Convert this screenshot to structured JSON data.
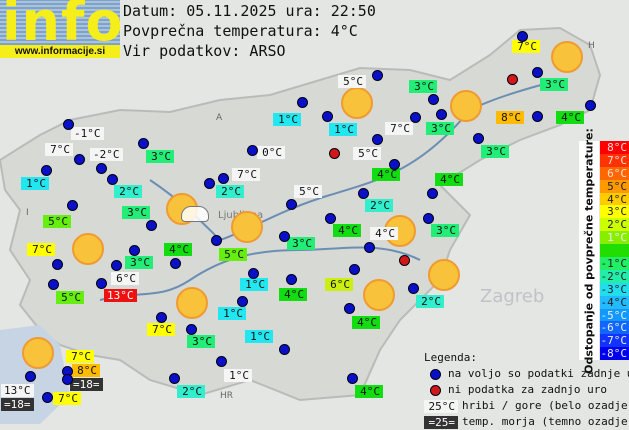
{
  "header": {
    "logo_text": "info",
    "site": "www.informacije.si",
    "date_line": "Datum: 05.11.2025 ura: 22:50",
    "avg_line": "Povprečna temperatura: 4°C",
    "source_line": "Vir podatkov: ARSO"
  },
  "map_markers": [
    "A",
    "I",
    "H",
    "HR",
    "Ljubljana",
    "Zagreb"
  ],
  "stations": [
    {
      "t": "7°C",
      "bg": "#ffff00"
    },
    {
      "t": "5°C",
      "bg": "#f5f5f5"
    },
    {
      "t": "3°C",
      "bg": "#22ee77"
    },
    {
      "t": "3°C",
      "bg": "#22ee77"
    },
    {
      "t": "1°C",
      "bg": "#22e6f0"
    },
    {
      "t": "1°C",
      "bg": "#22e6f0"
    },
    {
      "t": "7°C",
      "bg": "#f5f5f5"
    },
    {
      "t": "3°C",
      "bg": "#22ee77"
    },
    {
      "t": "8°C",
      "bg": "#ffbb00"
    },
    {
      "t": "4°C",
      "bg": "#11dd11"
    },
    {
      "t": "-1°C",
      "bg": "#f5f5f5"
    },
    {
      "t": "7°C",
      "bg": "#f5f5f5"
    },
    {
      "t": "-2°C",
      "bg": "#f5f5f5"
    },
    {
      "t": "3°C",
      "bg": "#22ee77"
    },
    {
      "t": "0°C",
      "bg": "#f5f5f5"
    },
    {
      "t": "5°C",
      "bg": "#f5f5f5"
    },
    {
      "t": "3°C",
      "bg": "#22ee77"
    },
    {
      "t": "1°C",
      "bg": "#22e6f0"
    },
    {
      "t": "2°C",
      "bg": "#33eecc"
    },
    {
      "t": "2°C",
      "bg": "#33eecc"
    },
    {
      "t": "7°C",
      "bg": "#f5f5f5"
    },
    {
      "t": "4°C",
      "bg": "#11dd11"
    },
    {
      "t": "4°C",
      "bg": "#11dd11"
    },
    {
      "t": "5°C",
      "bg": "#f5f5f5"
    },
    {
      "t": "2°C",
      "bg": "#33eecc"
    },
    {
      "t": "3°C",
      "bg": "#22ee77"
    },
    {
      "t": "5°C",
      "bg": "#66ee11"
    },
    {
      "t": "3°C",
      "bg": "#22ee77"
    },
    {
      "t": "4°C",
      "bg": "#11dd11"
    },
    {
      "t": "4°C",
      "bg": "#f5f5f5"
    },
    {
      "t": "3°C",
      "bg": "#22ee77"
    },
    {
      "t": "7°C",
      "bg": "#ffff00"
    },
    {
      "t": "4°C",
      "bg": "#11dd11"
    },
    {
      "t": "5°C",
      "bg": "#66ee11"
    },
    {
      "t": "3°C",
      "bg": "#22ee77"
    },
    {
      "t": "6°C",
      "bg": "#f5f5f5"
    },
    {
      "t": "1°C",
      "bg": "#22e6f0"
    },
    {
      "t": "4°C",
      "bg": "#11dd11"
    },
    {
      "t": "6°C",
      "bg": "#ccee11"
    },
    {
      "t": "2°C",
      "bg": "#33eecc"
    },
    {
      "t": "5°C",
      "bg": "#66ee11"
    },
    {
      "t": "13°C",
      "bg": "#ee1111",
      "fg": "#ffffff"
    },
    {
      "t": "1°C",
      "bg": "#22e6f0"
    },
    {
      "t": "4°C",
      "bg": "#11dd11"
    },
    {
      "t": "7°C",
      "bg": "#ffff00"
    },
    {
      "t": "3°C",
      "bg": "#22ee77"
    },
    {
      "t": "1°C",
      "bg": "#22e6f0"
    },
    {
      "t": "7°C",
      "bg": "#ffff00"
    },
    {
      "t": "8°C",
      "bg": "#ffbb00"
    },
    {
      "t": "=18=",
      "bg": "#333333",
      "fg": "#ffffff"
    },
    {
      "t": "13°C",
      "bg": "#f5f5f5"
    },
    {
      "t": "=18=",
      "bg": "#333333",
      "fg": "#ffffff"
    },
    {
      "t": "7°C",
      "bg": "#ffff00"
    },
    {
      "t": "1°C",
      "bg": "#f5f5f5"
    },
    {
      "t": "2°C",
      "bg": "#33eecc"
    },
    {
      "t": "4°C",
      "bg": "#11dd11"
    }
  ],
  "dot_status": {
    "blue": "#0a10c8",
    "red": "#d01818"
  },
  "colorbar": {
    "title": "Odstopanje od povprečne temperature:",
    "steps": [
      {
        "t": "8°C",
        "c": "#ff0000",
        "fg": "#ffdddd"
      },
      {
        "t": "7°C",
        "c": "#ff3300",
        "fg": "#ffdddd"
      },
      {
        "t": "6°C",
        "c": "#ff6600",
        "fg": "#ffe0cc"
      },
      {
        "t": "5°C",
        "c": "#ff9900",
        "fg": "#222"
      },
      {
        "t": "4°C",
        "c": "#ffcc00",
        "fg": "#222"
      },
      {
        "t": "3°C",
        "c": "#ffff00",
        "fg": "#222"
      },
      {
        "t": "2°C",
        "c": "#ccff00",
        "fg": "#222"
      },
      {
        "t": "1°C",
        "c": "#88ee00",
        "fg": "#eeeeee"
      },
      {
        "t": "",
        "c": "#22dd00",
        "fg": "#222"
      },
      {
        "t": "-1°C",
        "c": "#22ee66",
        "fg": "#222"
      },
      {
        "t": "-2°C",
        "c": "#22eeaa",
        "fg": "#222"
      },
      {
        "t": "-3°C",
        "c": "#22ddee",
        "fg": "#222"
      },
      {
        "t": "-4°C",
        "c": "#22bbff",
        "fg": "#222"
      },
      {
        "t": "-5°C",
        "c": "#1199ff",
        "fg": "#eeeeee"
      },
      {
        "t": "-6°C",
        "c": "#1166ff",
        "fg": "#eeeeee"
      },
      {
        "t": "-7°C",
        "c": "#1133ff",
        "fg": "#eeeeee"
      },
      {
        "t": "-8°C",
        "c": "#0000ee",
        "fg": "#eeeeee"
      }
    ]
  },
  "legend": {
    "title": "Legenda:",
    "blue": "na voljo so podatki zadnje ure",
    "red": "ni podatka za zadnjo uro",
    "hill_sample": "25°C",
    "hill": "hribi / gore (belo ozadje)",
    "sea_sample": "=25=",
    "sea": "temp. morja (temno ozadje)"
  }
}
